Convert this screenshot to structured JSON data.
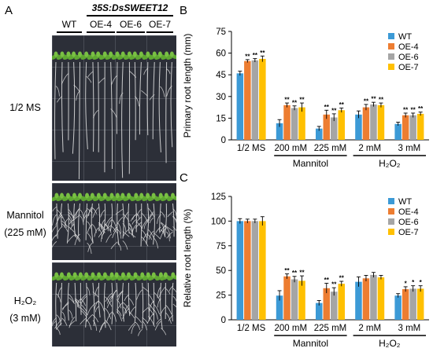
{
  "panels": {
    "a": "A",
    "b": "B",
    "c": "C"
  },
  "photo": {
    "construct": "35S:DsSWEET12",
    "genotypes": [
      "WT",
      "OE-4",
      "OE-6",
      "OE-7"
    ],
    "rows": [
      {
        "line1": "1/2 MS",
        "line2": ""
      },
      {
        "line1": "Mannitol",
        "line2": "(225 mM)"
      },
      {
        "line1": "H₂O₂",
        "line2": "(3 mM)"
      }
    ]
  },
  "colors": {
    "WT": "#3c9ad6",
    "OE-4": "#ed7d31",
    "OE-6": "#a5a5a5",
    "OE-7": "#ffc000",
    "background": "#2c2f38",
    "shoot": "#5fa832",
    "root": "#e6e6e6"
  },
  "chart_data": [
    {
      "type": "bar",
      "panel": "B",
      "ylabel": "Primary root length (mm)",
      "ylim": [
        0,
        75
      ],
      "yticks": [
        0,
        15,
        30,
        45,
        60,
        75
      ],
      "categories": [
        "1/2 MS",
        "200 mM",
        "225 mM",
        "2 mM",
        "3 mM"
      ],
      "groups": [
        {
          "label": "Mannitol",
          "categories": [
            "200 mM",
            "225 mM"
          ]
        },
        {
          "label": "H₂O₂",
          "categories": [
            "2 mM",
            "3 mM"
          ]
        }
      ],
      "legend": "top-right",
      "series": [
        {
          "name": "WT",
          "values": [
            46,
            11.5,
            7.8,
            17.5,
            11
          ],
          "errors": [
            1.5,
            2.5,
            1.5,
            2.5,
            1.2
          ],
          "marks": [
            "",
            "",
            "",
            "",
            ""
          ]
        },
        {
          "name": "OE-4",
          "values": [
            54.5,
            24,
            17.5,
            22.5,
            17
          ],
          "errors": [
            1,
            1.5,
            3,
            2,
            1.5
          ],
          "marks": [
            "**",
            "**",
            "**",
            "**",
            "**"
          ]
        },
        {
          "name": "OE-6",
          "values": [
            55,
            22,
            15.5,
            24.5,
            17
          ],
          "errors": [
            1.2,
            1.5,
            2.5,
            1.5,
            1.5
          ],
          "marks": [
            "**",
            "**",
            "**",
            "**",
            "**"
          ]
        },
        {
          "name": "OE-7",
          "values": [
            56,
            22.5,
            20.5,
            24,
            18
          ],
          "errors": [
            2,
            3,
            1.5,
            1.5,
            1.2
          ],
          "marks": [
            "**",
            "**",
            "**",
            "**",
            "**"
          ]
        }
      ]
    },
    {
      "type": "bar",
      "panel": "C",
      "ylabel": "Relative root length (%)",
      "ylim": [
        0,
        125
      ],
      "yticks": [
        0,
        25,
        50,
        75,
        100,
        125
      ],
      "categories": [
        "1/2 MS",
        "200 mM",
        "225 mM",
        "2 mM",
        "3 mM"
      ],
      "groups": [
        {
          "label": "Mannitol",
          "categories": [
            "200 mM",
            "225 mM"
          ]
        },
        {
          "label": "H₂O₂",
          "categories": [
            "2 mM",
            "3 mM"
          ]
        }
      ],
      "legend": "top-right",
      "series": [
        {
          "name": "WT",
          "values": [
            100,
            24.5,
            17,
            38.5,
            24.5
          ],
          "errors": [
            2.5,
            5,
            2.5,
            5,
            2
          ],
          "marks": [
            "",
            "",
            "",
            "",
            ""
          ]
        },
        {
          "name": "OE-4",
          "values": [
            100,
            44,
            32,
            42,
            31
          ],
          "errors": [
            2,
            2.5,
            5,
            3,
            2.5
          ],
          "marks": [
            "",
            "**",
            "**",
            "",
            "*"
          ]
        },
        {
          "name": "OE-6",
          "values": [
            100,
            41,
            28.5,
            45.5,
            31.5
          ],
          "errors": [
            2,
            3,
            4,
            2.5,
            3
          ],
          "marks": [
            "",
            "**",
            "**",
            "",
            "*"
          ]
        },
        {
          "name": "OE-7",
          "values": [
            100,
            39.5,
            36.5,
            43,
            31.5
          ],
          "errors": [
            4.5,
            5,
            2.5,
            2,
            3
          ],
          "marks": [
            "",
            "**",
            "**",
            "",
            "*"
          ]
        }
      ]
    }
  ]
}
